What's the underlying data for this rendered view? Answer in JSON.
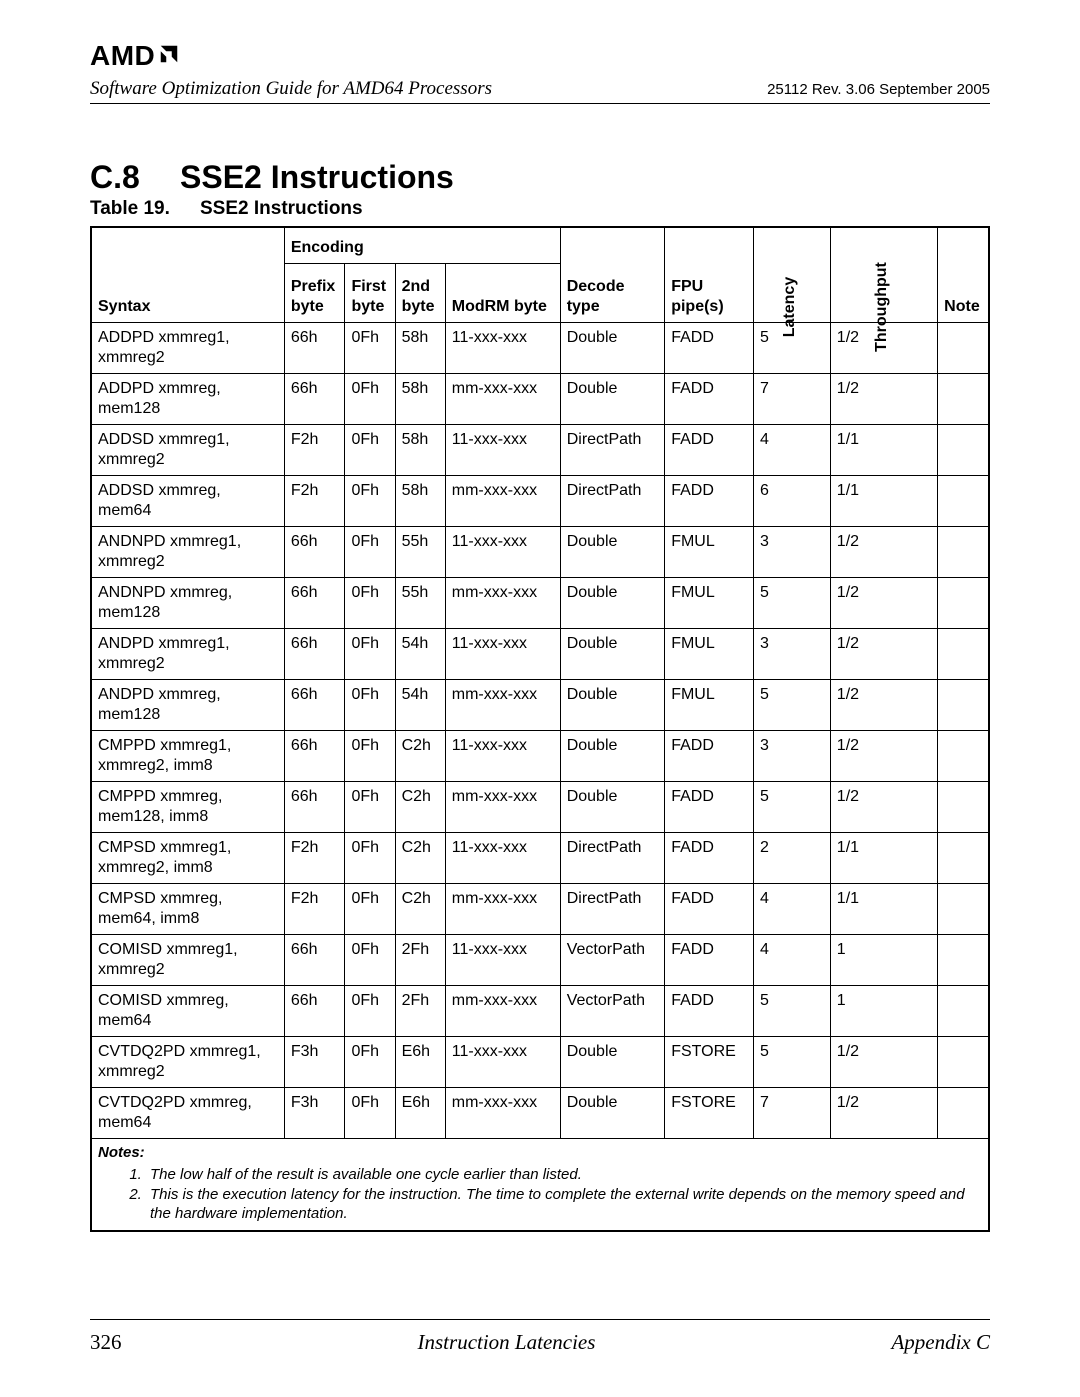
{
  "logo_text": "AMD",
  "header": {
    "doc_title": "Software Optimization Guide for AMD64 Processors",
    "meta": "25112   Rev. 3.06   September 2005"
  },
  "section": {
    "number": "C.8",
    "title": "SSE2 Instructions"
  },
  "table": {
    "caption_num": "Table 19.",
    "caption_title": "SSE2 Instructions",
    "group_encoding": "Encoding",
    "columns": {
      "syntax": "Syntax",
      "prefix": "Prefix byte",
      "first": "First byte",
      "second": "2nd byte",
      "modrm": "ModRM byte",
      "decode": "Decode type",
      "fpu": "FPU pipe(s)",
      "latency": "Latency",
      "throughput": "Throughput",
      "note": "Note"
    },
    "rows": [
      {
        "syntax": "ADDPD xmmreg1, xmmreg2",
        "prefix": "66h",
        "first": "0Fh",
        "second": "58h",
        "modrm": "11-xxx-xxx",
        "decode": "Double",
        "fpu": "FADD",
        "latency": "5",
        "throughput": "1/2",
        "note": ""
      },
      {
        "syntax": "ADDPD xmmreg, mem128",
        "prefix": "66h",
        "first": "0Fh",
        "second": "58h",
        "modrm": "mm-xxx-xxx",
        "decode": "Double",
        "fpu": "FADD",
        "latency": "7",
        "throughput": "1/2",
        "note": ""
      },
      {
        "syntax": "ADDSD xmmreg1, xmmreg2",
        "prefix": "F2h",
        "first": "0Fh",
        "second": "58h",
        "modrm": "11-xxx-xxx",
        "decode": "DirectPath",
        "fpu": "FADD",
        "latency": "4",
        "throughput": "1/1",
        "note": ""
      },
      {
        "syntax": "ADDSD xmmreg, mem64",
        "prefix": "F2h",
        "first": "0Fh",
        "second": "58h",
        "modrm": "mm-xxx-xxx",
        "decode": "DirectPath",
        "fpu": "FADD",
        "latency": "6",
        "throughput": "1/1",
        "note": ""
      },
      {
        "syntax": "ANDNPD xmmreg1, xmmreg2",
        "prefix": "66h",
        "first": "0Fh",
        "second": "55h",
        "modrm": "11-xxx-xxx",
        "decode": "Double",
        "fpu": "FMUL",
        "latency": "3",
        "throughput": "1/2",
        "note": ""
      },
      {
        "syntax": "ANDNPD xmmreg, mem128",
        "prefix": "66h",
        "first": "0Fh",
        "second": "55h",
        "modrm": "mm-xxx-xxx",
        "decode": "Double",
        "fpu": "FMUL",
        "latency": "5",
        "throughput": "1/2",
        "note": ""
      },
      {
        "syntax": "ANDPD xmmreg1, xmmreg2",
        "prefix": "66h",
        "first": "0Fh",
        "second": "54h",
        "modrm": "11-xxx-xxx",
        "decode": "Double",
        "fpu": "FMUL",
        "latency": "3",
        "throughput": "1/2",
        "note": ""
      },
      {
        "syntax": "ANDPD xmmreg, mem128",
        "prefix": "66h",
        "first": "0Fh",
        "second": "54h",
        "modrm": "mm-xxx-xxx",
        "decode": "Double",
        "fpu": "FMUL",
        "latency": "5",
        "throughput": "1/2",
        "note": ""
      },
      {
        "syntax": "CMPPD xmmreg1, xmmreg2, imm8",
        "prefix": "66h",
        "first": "0Fh",
        "second": "C2h",
        "modrm": "11-xxx-xxx",
        "decode": "Double",
        "fpu": "FADD",
        "latency": "3",
        "throughput": "1/2",
        "note": ""
      },
      {
        "syntax": "CMPPD xmmreg, mem128, imm8",
        "prefix": "66h",
        "first": "0Fh",
        "second": "C2h",
        "modrm": "mm-xxx-xxx",
        "decode": "Double",
        "fpu": "FADD",
        "latency": "5",
        "throughput": "1/2",
        "note": ""
      },
      {
        "syntax": "CMPSD xmmreg1, xmmreg2, imm8",
        "prefix": "F2h",
        "first": "0Fh",
        "second": "C2h",
        "modrm": "11-xxx-xxx",
        "decode": "DirectPath",
        "fpu": "FADD",
        "latency": "2",
        "throughput": "1/1",
        "note": ""
      },
      {
        "syntax": "CMPSD xmmreg, mem64, imm8",
        "prefix": "F2h",
        "first": "0Fh",
        "second": "C2h",
        "modrm": "mm-xxx-xxx",
        "decode": "DirectPath",
        "fpu": "FADD",
        "latency": "4",
        "throughput": "1/1",
        "note": ""
      },
      {
        "syntax": "COMISD xmmreg1, xmmreg2",
        "prefix": "66h",
        "first": "0Fh",
        "second": "2Fh",
        "modrm": "11-xxx-xxx",
        "decode": "VectorPath",
        "fpu": "FADD",
        "latency": "4",
        "throughput": "1",
        "note": ""
      },
      {
        "syntax": "COMISD xmmreg, mem64",
        "prefix": "66h",
        "first": "0Fh",
        "second": "2Fh",
        "modrm": "mm-xxx-xxx",
        "decode": "VectorPath",
        "fpu": "FADD",
        "latency": "5",
        "throughput": "1",
        "note": ""
      },
      {
        "syntax": "CVTDQ2PD xmmreg1, xmmreg2",
        "prefix": "F3h",
        "first": "0Fh",
        "second": "E6h",
        "modrm": "11-xxx-xxx",
        "decode": "Double",
        "fpu": "FSTORE",
        "latency": "5",
        "throughput": "1/2",
        "note": ""
      },
      {
        "syntax": "CVTDQ2PD xmmreg, mem64",
        "prefix": "F3h",
        "first": "0Fh",
        "second": "E6h",
        "modrm": "mm-xxx-xxx",
        "decode": "Double",
        "fpu": "FSTORE",
        "latency": "7",
        "throughput": "1/2",
        "note": ""
      }
    ],
    "notes_title": "Notes:",
    "notes": [
      "The low half of the result is available one cycle earlier than listed.",
      "This is the execution latency for the instruction. The time to complete the external write depends on the memory speed and the hardware implementation."
    ]
  },
  "footer": {
    "page": "326",
    "center": "Instruction Latencies",
    "right": "Appendix C"
  }
}
